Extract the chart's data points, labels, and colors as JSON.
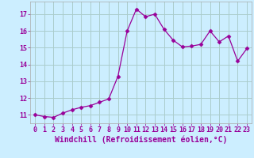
{
  "x": [
    0,
    1,
    2,
    3,
    4,
    5,
    6,
    7,
    8,
    9,
    10,
    11,
    12,
    13,
    14,
    15,
    16,
    17,
    18,
    19,
    20,
    21,
    22,
    23
  ],
  "y": [
    11.0,
    10.9,
    10.85,
    11.1,
    11.3,
    11.45,
    11.55,
    11.75,
    11.95,
    13.3,
    16.0,
    17.3,
    16.85,
    17.0,
    16.1,
    15.45,
    15.05,
    15.1,
    15.2,
    16.0,
    15.35,
    15.7,
    14.2,
    14.95
  ],
  "line_color": "#990099",
  "marker": "D",
  "markersize": 2.5,
  "linewidth": 0.9,
  "bg_color": "#cceeff",
  "grid_color": "#aacccc",
  "xlabel": "Windchill (Refroidissement éolien,°C)",
  "xlabel_fontsize": 7,
  "tick_fontsize": 6,
  "tick_color": "#990099",
  "ylim": [
    10.5,
    17.75
  ],
  "xlim": [
    -0.5,
    23.5
  ],
  "yticks": [
    11,
    12,
    13,
    14,
    15,
    16,
    17
  ],
  "xticks": [
    0,
    1,
    2,
    3,
    4,
    5,
    6,
    7,
    8,
    9,
    10,
    11,
    12,
    13,
    14,
    15,
    16,
    17,
    18,
    19,
    20,
    21,
    22,
    23
  ]
}
